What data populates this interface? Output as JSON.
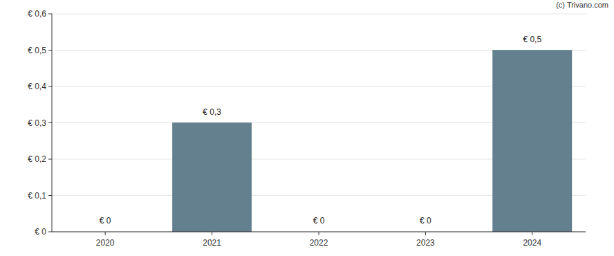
{
  "chart_data": {
    "type": "bar",
    "annotations": [
      "(c) Trivano.com"
    ],
    "categories": [
      "2020",
      "2021",
      "2022",
      "2023",
      "2024"
    ],
    "values": [
      0,
      0.3,
      0,
      0,
      0.5
    ],
    "value_labels": [
      "€ 0",
      "€ 0,3",
      "€ 0",
      "€ 0",
      "€ 0,5"
    ],
    "data_labels": true,
    "color": "#64808f",
    "ylim": [
      0,
      0.6
    ],
    "yticks": [
      {
        "value": 0,
        "label": "€ 0"
      },
      {
        "value": 0.1,
        "label": "€ 0,1"
      },
      {
        "value": 0.2,
        "label": "€ 0,2"
      },
      {
        "value": 0.3,
        "label": "€ 0,3"
      },
      {
        "value": 0.4,
        "label": "€ 0,4"
      },
      {
        "value": 0.5,
        "label": "€ 0,5"
      },
      {
        "value": 0.6,
        "label": "€ 0,6"
      }
    ],
    "grid": true
  }
}
